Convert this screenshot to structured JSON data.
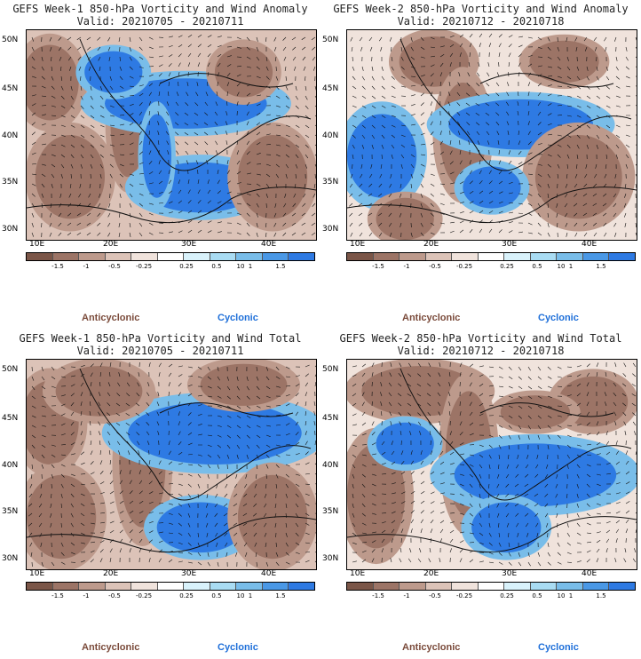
{
  "colors": {
    "dark_brown": "#7b5648",
    "brown": "#9c7466",
    "mid_brown": "#bd9a8c",
    "light_brown": "#dcc3b8",
    "pale_brown": "#f0e3dc",
    "white": "#ffffff",
    "pale_blue": "#d9f2fb",
    "light_blue": "#a9dcf3",
    "sky_blue": "#79bde9",
    "blue": "#4a98e6",
    "deep_blue": "#2e7ae3",
    "anticyclonic_label": "#7a4a3a",
    "cyclonic_label": "#1e6fd9"
  },
  "latitude_labels": [
    "50N",
    "45N",
    "40N",
    "35N",
    "30N"
  ],
  "longitude_labels": [
    "10E",
    "20E",
    "30E",
    "40E"
  ],
  "colorbar_ticks": [
    "-1.5",
    "-1",
    "-0.5",
    "-0.25",
    "0.25",
    "0.5",
    "1",
    "1.5"
  ],
  "colorbar_units": "10",
  "legend": {
    "anticyclonic": "Anticyclonic",
    "cyclonic": "Cyclonic"
  },
  "panels": [
    {
      "title": "GEFS Week-1 850-hPa Vorticity and Wind Anomaly",
      "valid": "Valid: 20210705 - 20210711"
    },
    {
      "title": "GEFS Week-2 850-hPa Vorticity and Wind Anomaly",
      "valid": "Valid: 20210712 - 20210718"
    },
    {
      "title": "GEFS Week-1 850-hPa Vorticity and Wind Total",
      "valid": "Valid: 20210705 - 20210711"
    },
    {
      "title": "GEFS Week-2 850-hPa Vorticity and Wind Total",
      "valid": "Valid: 20210712 - 20210718"
    }
  ]
}
